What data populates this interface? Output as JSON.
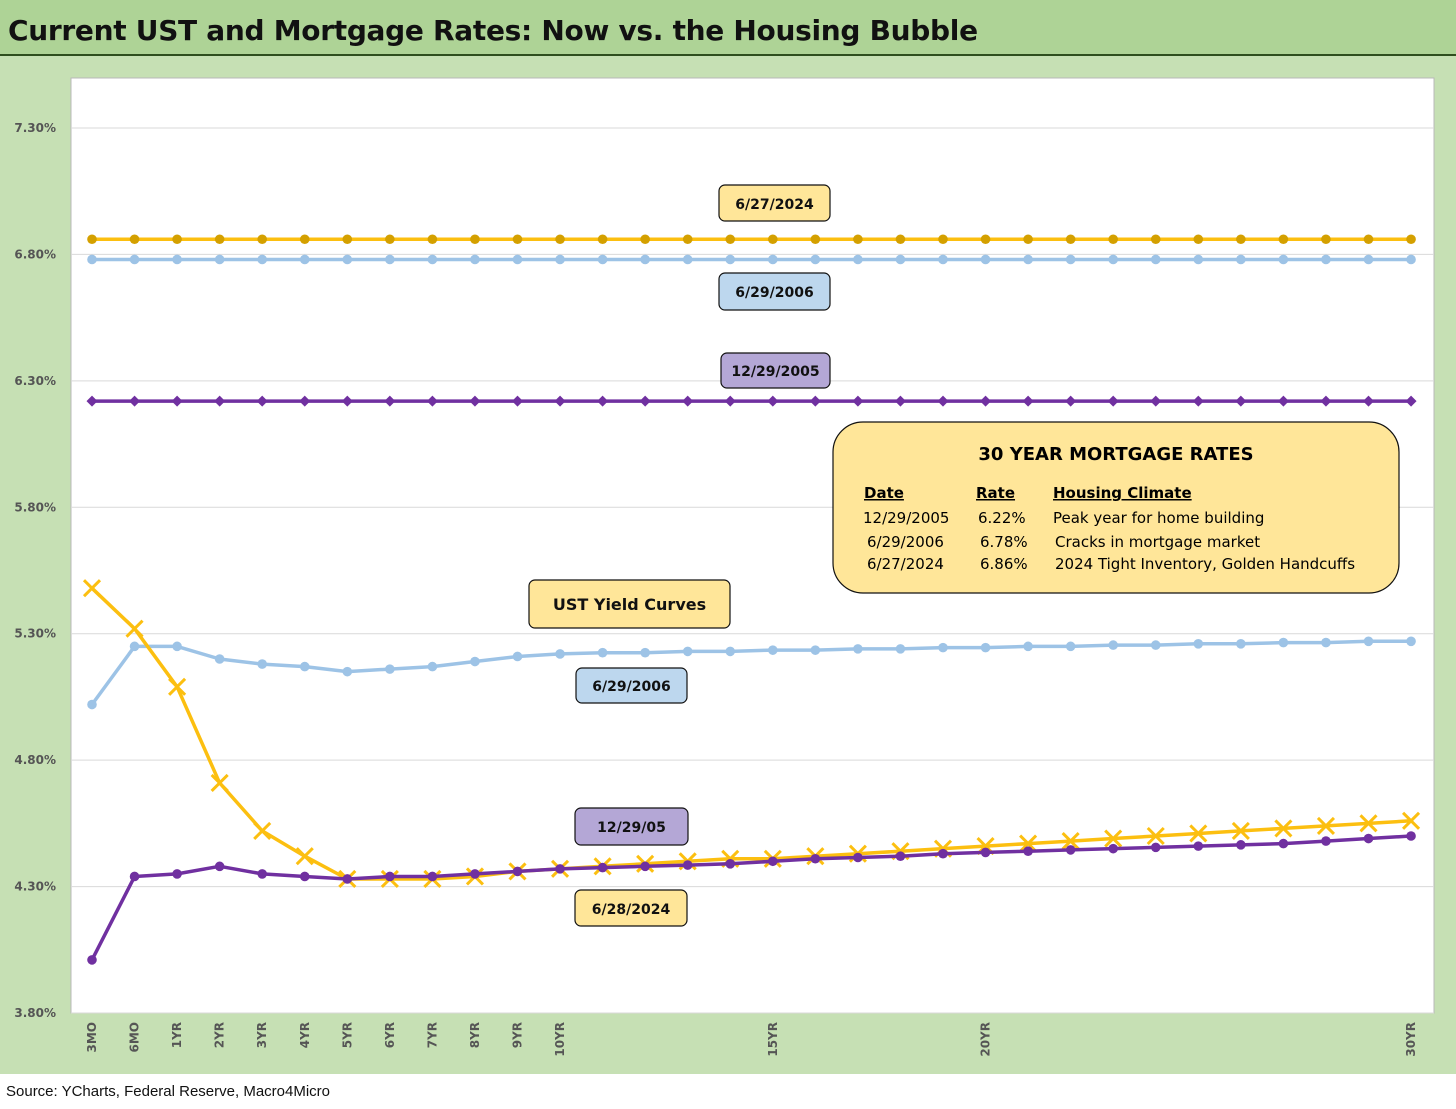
{
  "title": "Current UST and Mortgage Rates: Now vs. the Housing Bubble",
  "source": "Source: YCharts, Federal Reserve, Macro4Micro",
  "colors": {
    "gold": "#fcbf10",
    "gold_marker": "#d4a000",
    "light_blue": "#9dc3e6",
    "purple": "#7030a0",
    "label_gold": "#ffe699",
    "label_blue": "#bdd7ee",
    "label_purple": "#b4a7d6",
    "frame_green": "#c6e0b4",
    "title_green": "#aed396"
  },
  "labels": {
    "mortgage_2024": "6/27/2024",
    "mortgage_2006": "6/29/2006",
    "mortgage_2005": "12/29/2005",
    "ust_yield_curves": "UST Yield Curves",
    "ust_2006": "6/29/2006",
    "ust_2005": "12/29/05",
    "ust_2024": "6/28/2024"
  },
  "mortgage_table": {
    "title": "30 YEAR MORTGAGE RATES",
    "headers": [
      "Date",
      "Rate",
      "Housing Climate"
    ],
    "rows": [
      [
        "12/29/2005",
        "6.22%",
        "Peak year for home building"
      ],
      [
        "6/29/2006",
        "6.78%",
        "Cracks in mortgage market"
      ],
      [
        "6/27/2024",
        "6.86%",
        "2024 Tight Inventory, Golden Handcuffs"
      ]
    ]
  },
  "chart_data": {
    "type": "line",
    "x_tick_labels": [
      "3MO",
      "6MO",
      "1YR",
      "2YR",
      "3YR",
      "4YR",
      "5YR",
      "6YR",
      "7YR",
      "8YR",
      "9YR",
      "10YR",
      "",
      "",
      "",
      "",
      "15YR",
      "",
      "",
      "",
      "",
      "20YR",
      "",
      "",
      "",
      "",
      "",
      "",
      "",
      "",
      "",
      "30YR"
    ],
    "y_ticks": [
      "3.80%",
      "4.30%",
      "4.80%",
      "5.30%",
      "5.80%",
      "6.30%",
      "6.80%",
      "7.30%"
    ],
    "ylim": [
      3.8,
      7.3
    ],
    "grid": true,
    "series": [
      {
        "name": "6/27/2024",
        "color": "#fcbf10",
        "marker": "circle",
        "marker_color": "#d4a000",
        "values": [
          6.86,
          6.86,
          6.86,
          6.86,
          6.86,
          6.86,
          6.86,
          6.86,
          6.86,
          6.86,
          6.86,
          6.86,
          6.86,
          6.86,
          6.86,
          6.86,
          6.86,
          6.86,
          6.86,
          6.86,
          6.86,
          6.86,
          6.86,
          6.86,
          6.86,
          6.86,
          6.86,
          6.86,
          6.86,
          6.86,
          6.86,
          6.86
        ]
      },
      {
        "name": "6/29/2006",
        "color": "#9dc3e6",
        "marker": "circle",
        "marker_color": "#9dc3e6",
        "values": [
          6.78,
          6.78,
          6.78,
          6.78,
          6.78,
          6.78,
          6.78,
          6.78,
          6.78,
          6.78,
          6.78,
          6.78,
          6.78,
          6.78,
          6.78,
          6.78,
          6.78,
          6.78,
          6.78,
          6.78,
          6.78,
          6.78,
          6.78,
          6.78,
          6.78,
          6.78,
          6.78,
          6.78,
          6.78,
          6.78,
          6.78,
          6.78
        ]
      },
      {
        "name": "12/29/2005",
        "color": "#7030a0",
        "marker": "diamond",
        "marker_color": "#7030a0",
        "values": [
          6.22,
          6.22,
          6.22,
          6.22,
          6.22,
          6.22,
          6.22,
          6.22,
          6.22,
          6.22,
          6.22,
          6.22,
          6.22,
          6.22,
          6.22,
          6.22,
          6.22,
          6.22,
          6.22,
          6.22,
          6.22,
          6.22,
          6.22,
          6.22,
          6.22,
          6.22,
          6.22,
          6.22,
          6.22,
          6.22,
          6.22,
          6.22
        ]
      },
      {
        "name": "6/29/2006",
        "color": "#9dc3e6",
        "marker": "circle",
        "marker_color": "#9dc3e6",
        "values": [
          5.02,
          5.25,
          5.25,
          5.2,
          5.18,
          5.17,
          5.15,
          5.16,
          5.17,
          5.19,
          5.21,
          5.22,
          5.225,
          5.225,
          5.23,
          5.23,
          5.235,
          5.235,
          5.24,
          5.24,
          5.245,
          5.245,
          5.25,
          5.25,
          5.255,
          5.255,
          5.26,
          5.26,
          5.265,
          5.265,
          5.27,
          5.27
        ]
      },
      {
        "name": "6/28/2024",
        "color": "#fcbf10",
        "marker": "x",
        "marker_color": "#fcbf10",
        "values": [
          5.48,
          5.32,
          5.09,
          4.71,
          4.52,
          4.42,
          4.33,
          4.33,
          4.33,
          4.34,
          4.36,
          4.37,
          4.38,
          4.39,
          4.4,
          4.41,
          4.41,
          4.42,
          4.43,
          4.44,
          4.45,
          4.46,
          4.47,
          4.48,
          4.49,
          4.5,
          4.51,
          4.52,
          4.53,
          4.54,
          4.55,
          4.56
        ]
      },
      {
        "name": "12/29/05",
        "color": "#7030a0",
        "marker": "circle",
        "marker_color": "#7030a0",
        "values": [
          4.01,
          4.34,
          4.35,
          4.38,
          4.35,
          4.34,
          4.33,
          4.34,
          4.34,
          4.35,
          4.36,
          4.37,
          4.375,
          4.38,
          4.385,
          4.39,
          4.4,
          4.41,
          4.415,
          4.42,
          4.43,
          4.435,
          4.44,
          4.445,
          4.45,
          4.455,
          4.46,
          4.465,
          4.47,
          4.48,
          4.49,
          4.5
        ]
      }
    ]
  }
}
